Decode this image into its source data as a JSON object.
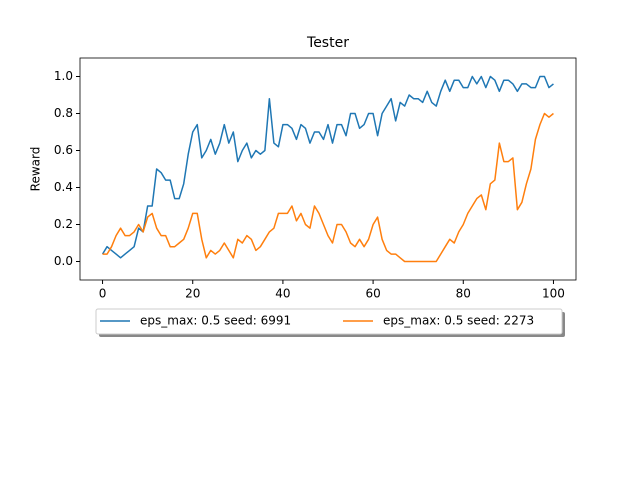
{
  "chart_data": {
    "type": "line",
    "title": "Tester",
    "ylabel": "Reward",
    "x": [
      0,
      1,
      2,
      3,
      4,
      5,
      6,
      7,
      8,
      9,
      10,
      11,
      12,
      13,
      14,
      15,
      16,
      17,
      18,
      19,
      20,
      21,
      22,
      23,
      24,
      25,
      26,
      27,
      28,
      29,
      30,
      31,
      32,
      33,
      34,
      35,
      36,
      37,
      38,
      39,
      40,
      41,
      42,
      43,
      44,
      45,
      46,
      47,
      48,
      49,
      50,
      51,
      52,
      53,
      54,
      55,
      56,
      57,
      58,
      59,
      60,
      61,
      62,
      63,
      64,
      65,
      66,
      67,
      68,
      69,
      70,
      71,
      72,
      73,
      74,
      75,
      76,
      77,
      78,
      79,
      80,
      81,
      82,
      83,
      84,
      85,
      86,
      87,
      88,
      89,
      90,
      91,
      92,
      93,
      94,
      95,
      96,
      97,
      98,
      99,
      100
    ],
    "series": [
      {
        "name": "eps_max: 0.5 seed: 6991",
        "color": "#1f77b4",
        "values": [
          0.04,
          0.08,
          0.06,
          0.04,
          0.02,
          0.04,
          0.06,
          0.08,
          0.18,
          0.16,
          0.3,
          0.3,
          0.5,
          0.48,
          0.44,
          0.44,
          0.34,
          0.34,
          0.42,
          0.58,
          0.7,
          0.74,
          0.56,
          0.6,
          0.66,
          0.58,
          0.64,
          0.74,
          0.64,
          0.7,
          0.54,
          0.6,
          0.64,
          0.56,
          0.6,
          0.58,
          0.6,
          0.88,
          0.64,
          0.62,
          0.74,
          0.74,
          0.72,
          0.66,
          0.74,
          0.72,
          0.64,
          0.7,
          0.7,
          0.66,
          0.74,
          0.64,
          0.74,
          0.74,
          0.68,
          0.8,
          0.8,
          0.72,
          0.74,
          0.8,
          0.8,
          0.68,
          0.8,
          0.84,
          0.88,
          0.76,
          0.86,
          0.84,
          0.9,
          0.88,
          0.88,
          0.86,
          0.92,
          0.86,
          0.84,
          0.92,
          0.98,
          0.92,
          0.98,
          0.98,
          0.94,
          0.94,
          1.0,
          0.96,
          1.0,
          0.94,
          1.0,
          0.98,
          0.92,
          0.98,
          0.98,
          0.96,
          0.92,
          0.96,
          0.96,
          0.94,
          0.94,
          1.0,
          1.0,
          0.94,
          0.96
        ]
      },
      {
        "name": "eps_max: 0.5 seed: 2273",
        "color": "#ff7f0e",
        "values": [
          0.04,
          0.04,
          0.08,
          0.14,
          0.18,
          0.14,
          0.14,
          0.16,
          0.2,
          0.16,
          0.24,
          0.26,
          0.18,
          0.14,
          0.14,
          0.08,
          0.08,
          0.1,
          0.12,
          0.18,
          0.26,
          0.26,
          0.12,
          0.02,
          0.06,
          0.04,
          0.06,
          0.1,
          0.06,
          0.02,
          0.12,
          0.1,
          0.14,
          0.12,
          0.06,
          0.08,
          0.12,
          0.16,
          0.18,
          0.26,
          0.26,
          0.26,
          0.3,
          0.22,
          0.26,
          0.2,
          0.18,
          0.3,
          0.26,
          0.2,
          0.14,
          0.1,
          0.2,
          0.2,
          0.16,
          0.1,
          0.08,
          0.12,
          0.08,
          0.12,
          0.2,
          0.24,
          0.12,
          0.06,
          0.04,
          0.04,
          0.02,
          0,
          0,
          0,
          0,
          0,
          0,
          0,
          0,
          0.04,
          0.08,
          0.12,
          0.1,
          0.16,
          0.2,
          0.26,
          0.3,
          0.34,
          0.36,
          0.28,
          0.42,
          0.44,
          0.64,
          0.54,
          0.54,
          0.56,
          0.28,
          0.32,
          0.42,
          0.5,
          0.66,
          0.74,
          0.8,
          0.78,
          0.8
        ]
      }
    ],
    "xlim": [
      -5,
      105
    ],
    "xticks": [
      0,
      20,
      40,
      60,
      80,
      100
    ],
    "ylim": [
      -0.1,
      1.1
    ],
    "yticks": [
      {
        "value": 0,
        "label": "0.0"
      },
      {
        "value": 0.2,
        "label": "0.2"
      },
      {
        "value": 0.4,
        "label": "0.4"
      },
      {
        "value": 0.6,
        "label": "0.6"
      },
      {
        "value": 0.8,
        "label": "0.8"
      },
      {
        "value": 1,
        "label": "1.0"
      }
    ],
    "legend": "below"
  }
}
